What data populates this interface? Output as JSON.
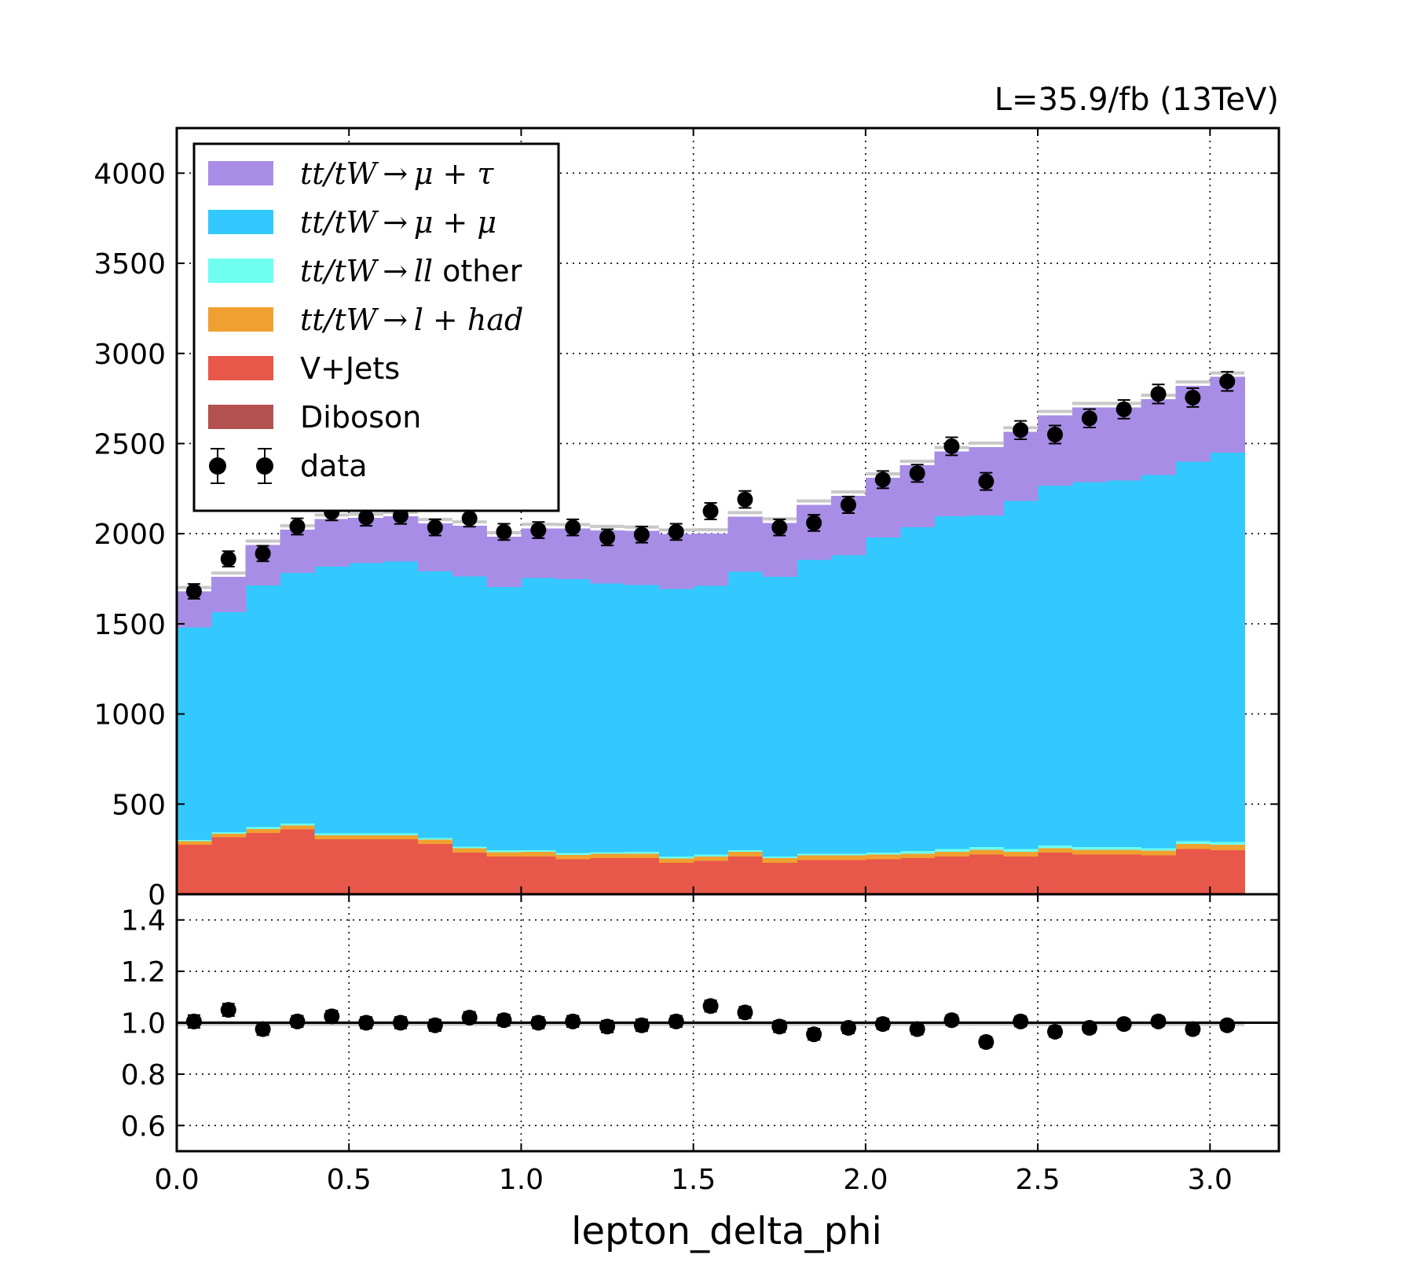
{
  "chart_data": {
    "type": "stacked-histogram",
    "lumi_label": "L=35.9/fb (13TeV)",
    "xlabel": "lepton_delta_phi",
    "xlim": [
      0.0,
      3.2
    ],
    "xticks": [
      "0.0",
      "0.5",
      "1.0",
      "1.5",
      "2.0",
      "2.5",
      "3.0"
    ],
    "main": {
      "ylim": [
        0,
        4250
      ],
      "yticks": [
        "0",
        "500",
        "1000",
        "1500",
        "2000",
        "2500",
        "3000",
        "3500",
        "4000"
      ]
    },
    "ratio": {
      "ylim": [
        0.5,
        1.5
      ],
      "yticks": [
        "0.6",
        "0.8",
        "1.0",
        "1.2",
        "1.4"
      ],
      "reference": 1.0
    },
    "bins": [
      0.0,
      0.1,
      0.2,
      0.3,
      0.4,
      0.5,
      0.6,
      0.7,
      0.8,
      0.9,
      1.0,
      1.1,
      1.2,
      1.3,
      1.4,
      1.5,
      1.6,
      1.7,
      1.8,
      1.9,
      2.0,
      2.1,
      2.2,
      2.3,
      2.4,
      2.5,
      2.6,
      2.7,
      2.8,
      2.9,
      3.0,
      3.1
    ],
    "series": [
      {
        "name": "Diboson",
        "color": "#b35050",
        "values": [
          5,
          5,
          5,
          5,
          5,
          5,
          5,
          5,
          5,
          5,
          5,
          5,
          5,
          5,
          5,
          5,
          5,
          5,
          5,
          5,
          5,
          5,
          5,
          5,
          5,
          5,
          5,
          5,
          5,
          5,
          5
        ]
      },
      {
        "name": "V+Jets",
        "color": "#e8584a",
        "values": [
          270,
          310,
          335,
          355,
          300,
          300,
          300,
          275,
          225,
          205,
          205,
          190,
          195,
          195,
          170,
          180,
          205,
          170,
          185,
          185,
          190,
          195,
          205,
          215,
          205,
          225,
          215,
          215,
          210,
          245,
          240
        ]
      },
      {
        "name": "tt/tW → l + had",
        "label_math": "tt/tW → l + had",
        "label_text": "",
        "color": "#f0a030",
        "values": [
          20,
          20,
          22,
          22,
          22,
          22,
          22,
          22,
          24,
          24,
          25,
          24,
          24,
          25,
          24,
          25,
          25,
          25,
          25,
          25,
          25,
          25,
          26,
          26,
          26,
          26,
          26,
          26,
          26,
          30,
          30
        ]
      },
      {
        "name": "tt/tW → ll other",
        "label_math": "tt/tW → ll",
        "label_text": " other",
        "color": "#6ffff0",
        "values": [
          5,
          10,
          10,
          10,
          10,
          10,
          10,
          10,
          10,
          10,
          10,
          10,
          10,
          10,
          10,
          10,
          10,
          10,
          10,
          10,
          10,
          15,
          15,
          15,
          15,
          15,
          15,
          15,
          15,
          15,
          15
        ]
      },
      {
        "name": "tt/tW → μ + μ",
        "label_math": "tt/tW → μ + μ",
        "label_text": "",
        "color": "#33c9ff",
        "values": [
          1180,
          1220,
          1340,
          1390,
          1480,
          1500,
          1510,
          1480,
          1500,
          1460,
          1510,
          1520,
          1490,
          1480,
          1485,
          1490,
          1545,
          1550,
          1630,
          1655,
          1750,
          1795,
          1845,
          1840,
          1930,
          1995,
          2025,
          2035,
          2070,
          2105,
          2160
        ]
      },
      {
        "name": "tt/tW → μ + τ",
        "label_math": "tt/tW → μ + τ",
        "label_text": "",
        "color": "#a88de6",
        "values": [
          200,
          195,
          225,
          240,
          265,
          250,
          250,
          265,
          280,
          280,
          275,
          280,
          295,
          300,
          305,
          290,
          305,
          300,
          305,
          330,
          330,
          345,
          360,
          380,
          385,
          390,
          415,
          405,
          420,
          420,
          420
        ]
      }
    ],
    "data": {
      "name": "data",
      "values": [
        1680,
        1860,
        1890,
        2040,
        2120,
        2090,
        2100,
        2035,
        2085,
        2010,
        2020,
        2035,
        1980,
        1995,
        2010,
        2125,
        2190,
        2035,
        2060,
        2160,
        2300,
        2335,
        2485,
        2290,
        2575,
        2550,
        2640,
        2690,
        2775,
        2755,
        2845
      ],
      "errors": [
        41,
        43,
        43,
        45,
        46,
        46,
        46,
        45,
        46,
        45,
        45,
        45,
        45,
        45,
        45,
        46,
        47,
        45,
        45,
        46,
        48,
        48,
        50,
        48,
        51,
        50,
        51,
        52,
        53,
        52,
        53
      ]
    },
    "ratio_values": [
      1.005,
      1.05,
      0.975,
      1.005,
      1.025,
      1.0,
      1.0,
      0.99,
      1.02,
      1.01,
      1.0,
      1.005,
      0.985,
      0.99,
      1.005,
      1.065,
      1.04,
      0.985,
      0.955,
      0.98,
      0.995,
      0.975,
      1.01,
      0.925,
      1.005,
      0.965,
      0.98,
      0.995,
      1.005,
      0.975,
      0.99
    ],
    "ratio_errors": [
      0.025,
      0.024,
      0.023,
      0.022,
      0.022,
      0.022,
      0.022,
      0.022,
      0.022,
      0.022,
      0.022,
      0.022,
      0.023,
      0.023,
      0.022,
      0.022,
      0.022,
      0.022,
      0.022,
      0.021,
      0.021,
      0.021,
      0.02,
      0.02,
      0.02,
      0.02,
      0.019,
      0.019,
      0.019,
      0.019,
      0.019
    ],
    "legend": {
      "placement": "top-left",
      "order": [
        "tt/tW → μ + τ",
        "tt/tW → μ + μ",
        "tt/tW → ll other",
        "tt/tW → l + had",
        "V+Jets",
        "Diboson",
        "data"
      ]
    },
    "grid": true
  }
}
